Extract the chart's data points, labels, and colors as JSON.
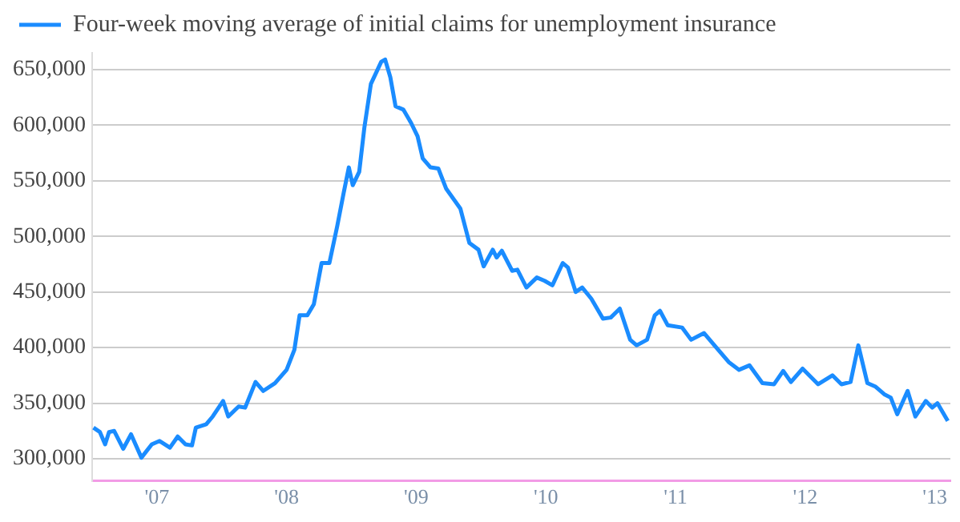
{
  "chart_data": {
    "type": "line",
    "x": [
      2006.51,
      2006.56,
      2006.6,
      2006.63,
      2006.67,
      2006.74,
      2006.8,
      2006.88,
      2006.96,
      2007.02,
      2007.1,
      2007.16,
      2007.22,
      2007.27,
      2007.3,
      2007.38,
      2007.43,
      2007.51,
      2007.55,
      2007.63,
      2007.68,
      2007.76,
      2007.82,
      2007.91,
      2008.0,
      2008.06,
      2008.1,
      2008.16,
      2008.21,
      2008.27,
      2008.33,
      2008.39,
      2008.44,
      2008.48,
      2008.51,
      2008.56,
      2008.6,
      2008.65,
      2008.73,
      2008.76,
      2008.8,
      2008.84,
      2008.9,
      2008.96,
      2009.01,
      2009.05,
      2009.11,
      2009.17,
      2009.23,
      2009.34,
      2009.41,
      2009.48,
      2009.52,
      2009.59,
      2009.62,
      2009.66,
      2009.74,
      2009.78,
      2009.85,
      2009.93,
      2009.99,
      2010.05,
      2010.13,
      2010.17,
      2010.23,
      2010.28,
      2010.35,
      2010.44,
      2010.5,
      2010.57,
      2010.65,
      2010.7,
      2010.78,
      2010.84,
      2010.88,
      2010.94,
      2011.05,
      2011.12,
      2011.22,
      2011.3,
      2011.41,
      2011.49,
      2011.57,
      2011.67,
      2011.76,
      2011.83,
      2011.89,
      2011.98,
      2012.1,
      2012.21,
      2012.28,
      2012.35,
      2012.41,
      2012.48,
      2012.54,
      2012.61,
      2012.66,
      2012.71,
      2012.79,
      2012.85,
      2012.93,
      2012.98,
      2013.02,
      2013.1
    ],
    "series": [
      {
        "name": "Four-week moving average of initial claims for unemployment insurance",
        "color": "#1a8cff",
        "values": [
          328000,
          324000,
          313000,
          324000,
          325000,
          309000,
          322000,
          301000,
          313000,
          316000,
          310000,
          320000,
          313000,
          312000,
          328000,
          331000,
          338000,
          352000,
          338000,
          347000,
          346000,
          369000,
          361000,
          368000,
          380000,
          398000,
          429000,
          429000,
          439000,
          476000,
          476000,
          509000,
          539000,
          562000,
          546000,
          558000,
          598000,
          637000,
          657000,
          659000,
          643000,
          617000,
          614000,
          602000,
          590000,
          570000,
          562000,
          561000,
          543000,
          525000,
          494000,
          488000,
          473000,
          488000,
          481000,
          487000,
          469000,
          470000,
          454000,
          463000,
          460000,
          456000,
          476000,
          472000,
          450000,
          454000,
          444000,
          426000,
          427000,
          435000,
          407000,
          402000,
          407000,
          429000,
          433000,
          420000,
          418000,
          407000,
          413000,
          402000,
          387000,
          380000,
          384000,
          368000,
          367000,
          379000,
          369000,
          381000,
          367000,
          375000,
          367000,
          369000,
          402000,
          368000,
          365000,
          358000,
          355000,
          340000,
          361000,
          338000,
          352000,
          346000,
          350000,
          334000
        ]
      }
    ],
    "xlim": [
      2006.5,
      2013.12
    ],
    "xticks": [
      {
        "value": 2007,
        "label": "'07"
      },
      {
        "value": 2008,
        "label": "'08"
      },
      {
        "value": 2009,
        "label": "'09"
      },
      {
        "value": 2010,
        "label": "'10"
      },
      {
        "value": 2011,
        "label": "'11"
      },
      {
        "value": 2012,
        "label": "'12"
      },
      {
        "value": 2013,
        "label": "'13"
      }
    ],
    "ylim": [
      280000,
      665000
    ],
    "yticks": [
      {
        "value": 300000,
        "label": "300,000"
      },
      {
        "value": 350000,
        "label": "350,000"
      },
      {
        "value": 400000,
        "label": "400,000"
      },
      {
        "value": 450000,
        "label": "450,000"
      },
      {
        "value": 500000,
        "label": "500,000"
      },
      {
        "value": 550000,
        "label": "550,000"
      },
      {
        "value": 600000,
        "label": "600,000"
      },
      {
        "value": 650000,
        "label": "650,000"
      }
    ],
    "grid": "y",
    "legend": "top left",
    "marker": "none",
    "line_style": "solid"
  }
}
